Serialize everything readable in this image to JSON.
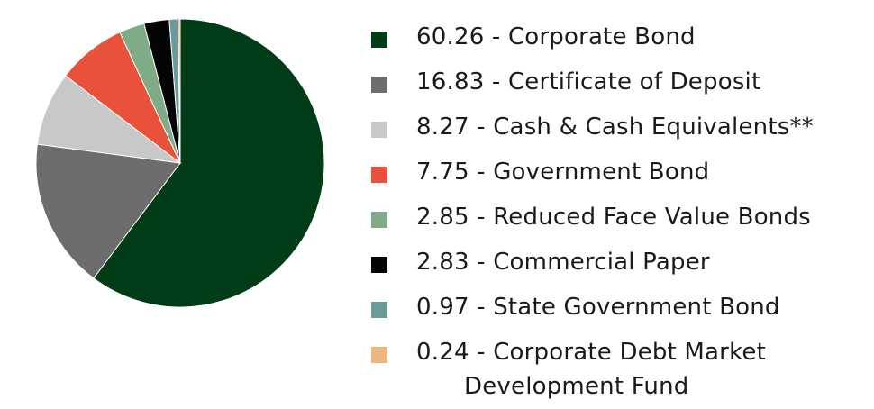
{
  "chart_data": {
    "type": "pie",
    "title": "",
    "slices": [
      {
        "label": "60.26 - Corporate Bond",
        "value": 60.26,
        "color": "#003d17"
      },
      {
        "label": "16.83 - Certificate of Deposit",
        "value": 16.83,
        "color": "#6e6d6d"
      },
      {
        "label": "8.27 - Cash & Cash Equivalents**",
        "value": 8.27,
        "color": "#c8c8c8"
      },
      {
        "label": "7.75 - Government Bond",
        "value": 7.75,
        "color": "#e8523a"
      },
      {
        "label": "2.85 - Reduced Face Value Bonds",
        "value": 2.85,
        "color": "#7fac86"
      },
      {
        "label": "2.83 - Commercial Paper",
        "value": 2.83,
        "color": "#050505"
      },
      {
        "label": "0.97 - State Government Bond",
        "value": 0.97,
        "color": "#6a9a99"
      },
      {
        "label": "0.24 - Corporate Debt Market Development Fund",
        "label_line1": "0.24 - Corporate Debt Market",
        "label_line2": "Development Fund",
        "value": 0.24,
        "color": "#ecb57d"
      }
    ],
    "legend_position": "right",
    "start_angle": "top, clockwise"
  }
}
